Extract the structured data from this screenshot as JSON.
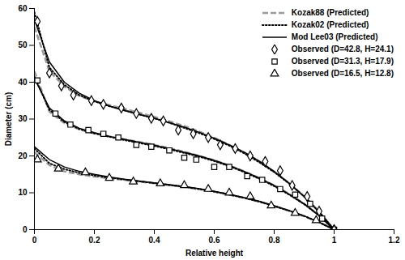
{
  "chart_data": {
    "type": "line",
    "x_label": "Relative height",
    "y_label": "Diameter (cm)",
    "xlim": [
      0,
      1.2
    ],
    "xticks": [
      0,
      0.2,
      0.4,
      0.6,
      0.8,
      1,
      1.2
    ],
    "ylim": [
      0,
      60
    ],
    "yticks": [
      0,
      10,
      20,
      30,
      40,
      50,
      60
    ],
    "grid": false,
    "legend": "upper right",
    "series": [
      {
        "name": "Kozak88 (Predicted)",
        "type": "line",
        "color": "#999999",
        "line_style": "dashed",
        "x": [
          0,
          0.05,
          0.1,
          0.15,
          0.2,
          0.25,
          0.3,
          0.35,
          0.4,
          0.45,
          0.5,
          0.55,
          0.6,
          0.65,
          0.7,
          0.75,
          0.8,
          0.85,
          0.9,
          0.95,
          1
        ],
        "values": [
          [
            55,
            43,
            38.8,
            36.3,
            34.8,
            33.8,
            32.8,
            31.7,
            30.6,
            29.4,
            28.1,
            26.6,
            24.9,
            23,
            20.9,
            18.5,
            15.7,
            12.6,
            9,
            4.9,
            0
          ],
          [
            43,
            32,
            28.9,
            27.2,
            26.1,
            25.3,
            24.5,
            23.8,
            23,
            22.1,
            21.1,
            20,
            18.8,
            17.4,
            15.8,
            14,
            12,
            9.7,
            7,
            3.9,
            0
          ],
          [
            21,
            17.5,
            15.8,
            15,
            14.4,
            13.9,
            13.5,
            13,
            12.6,
            12.1,
            11.6,
            11,
            10.3,
            9.5,
            8.6,
            7.6,
            6.4,
            5.1,
            3.6,
            2,
            0
          ]
        ]
      },
      {
        "name": "Kozak02 (Predicted)",
        "type": "line",
        "color": "#000000",
        "line_style": "dotted",
        "x": [
          0,
          0.05,
          0.1,
          0.15,
          0.2,
          0.25,
          0.3,
          0.35,
          0.4,
          0.45,
          0.5,
          0.55,
          0.6,
          0.65,
          0.7,
          0.75,
          0.8,
          0.85,
          0.9,
          0.95,
          1
        ],
        "values": [
          [
            59,
            44,
            39.3,
            36.5,
            34.8,
            33.5,
            32.4,
            31.3,
            30.2,
            29,
            27.6,
            26.2,
            24.6,
            22.8,
            20.7,
            18.3,
            15.6,
            12.5,
            9,
            4.8,
            0
          ],
          [
            41.5,
            32.5,
            29.2,
            27.3,
            26.1,
            25.2,
            24.3,
            23.5,
            22.7,
            21.8,
            20.8,
            19.8,
            18.6,
            17.2,
            15.6,
            13.8,
            11.8,
            9.5,
            6.9,
            3.8,
            0
          ],
          [
            22,
            18,
            16.4,
            15.4,
            14.7,
            14.1,
            13.6,
            13.1,
            12.6,
            12.1,
            11.6,
            11,
            10.3,
            9.5,
            8.6,
            7.6,
            6.4,
            5.1,
            3.7,
            2,
            0
          ]
        ]
      },
      {
        "name": "Mod Lee03 (Predicted)",
        "type": "line",
        "color": "#000000",
        "line_style": "solid",
        "x": [
          0,
          0.05,
          0.1,
          0.15,
          0.2,
          0.25,
          0.3,
          0.35,
          0.4,
          0.45,
          0.5,
          0.55,
          0.6,
          0.65,
          0.7,
          0.75,
          0.8,
          0.85,
          0.9,
          0.95,
          1
        ],
        "values": [
          [
            57,
            45.5,
            40,
            37,
            35,
            33.5,
            32.3,
            31.2,
            30.2,
            29,
            27.8,
            26.4,
            24.8,
            23,
            21,
            18.6,
            15.8,
            12.6,
            9,
            4.8,
            0
          ],
          [
            41,
            33,
            29.5,
            27.5,
            26.3,
            25.3,
            24.5,
            23.7,
            22.9,
            22,
            21,
            20,
            18.8,
            17.4,
            15.8,
            14,
            12,
            9.6,
            7,
            3.8,
            0
          ],
          [
            22.5,
            19,
            17,
            15.8,
            15,
            14.3,
            13.7,
            13.2,
            12.7,
            12.2,
            11.7,
            11.1,
            10.4,
            9.6,
            8.7,
            7.7,
            6.5,
            5.2,
            3.7,
            2,
            0
          ]
        ]
      },
      {
        "name": "Observed (D=42.8, H=24.1)",
        "type": "scatter",
        "color": "#000000",
        "marker": "diamond",
        "x": [
          0.01,
          0.05,
          0.09,
          0.13,
          0.19,
          0.23,
          0.29,
          0.34,
          0.39,
          0.43,
          0.48,
          0.53,
          0.58,
          0.62,
          0.67,
          0.72,
          0.77,
          0.82,
          0.86,
          0.91,
          0.95,
          1
        ],
        "values": [
          56.5,
          42.5,
          39,
          36.5,
          35,
          34,
          33,
          31.5,
          30.2,
          29.5,
          27,
          26,
          25,
          23,
          22,
          20,
          18.5,
          16,
          12,
          9,
          5,
          0
        ]
      },
      {
        "name": "Observed (D=31.3, H=17.9)",
        "type": "scatter",
        "color": "#000000",
        "marker": "square",
        "x": [
          0.01,
          0.07,
          0.12,
          0.18,
          0.23,
          0.28,
          0.34,
          0.39,
          0.45,
          0.5,
          0.54,
          0.6,
          0.65,
          0.71,
          0.76,
          0.82,
          0.87,
          0.92,
          0.96,
          1
        ],
        "values": [
          40.5,
          31.5,
          28.5,
          27,
          26,
          25,
          23,
          22.5,
          21.5,
          19.5,
          19,
          17,
          17,
          14.5,
          13.5,
          11,
          9.5,
          7,
          3,
          0
        ]
      },
      {
        "name": "Observed (D=16.5, H=12.8)",
        "type": "scatter",
        "color": "#000000",
        "marker": "triangle",
        "x": [
          0.01,
          0.08,
          0.17,
          0.25,
          0.33,
          0.42,
          0.5,
          0.58,
          0.65,
          0.72,
          0.79,
          0.87,
          0.94,
          1
        ],
        "values": [
          19,
          16.5,
          15.5,
          14,
          13,
          12.5,
          12,
          11,
          10,
          9,
          6.5,
          4.5,
          2.5,
          0
        ]
      }
    ]
  }
}
